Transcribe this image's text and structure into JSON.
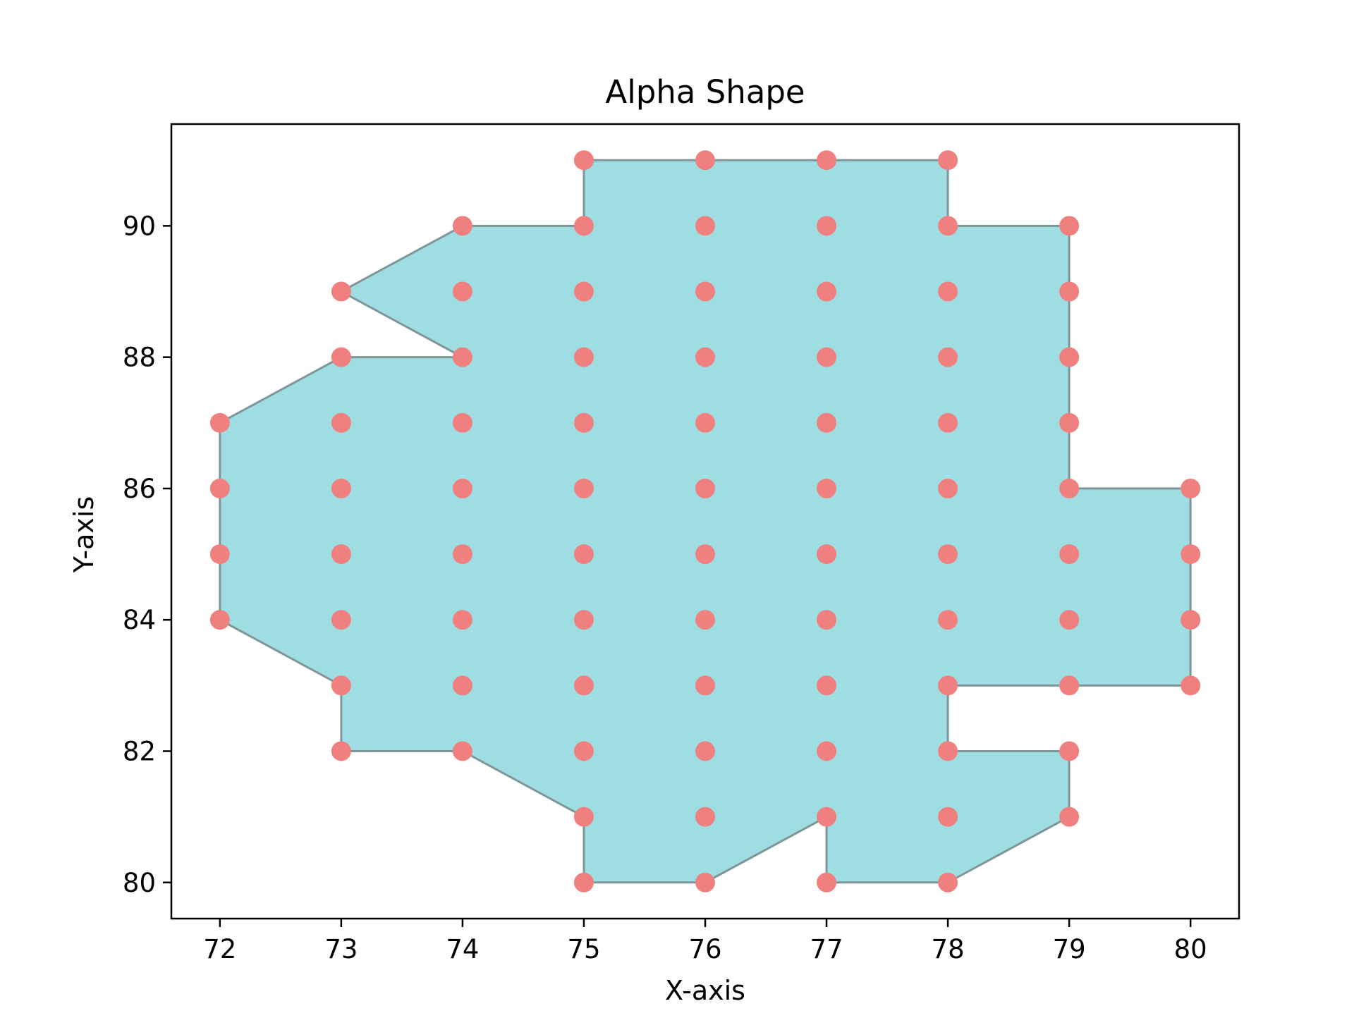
{
  "chart_data": {
    "type": "scatter",
    "title": "Alpha Shape",
    "xlabel": "X-axis",
    "ylabel": "Y-axis",
    "xlim": [
      71.6,
      80.4
    ],
    "ylim": [
      79.45,
      91.55
    ],
    "xticks": [
      72,
      73,
      74,
      75,
      76,
      77,
      78,
      79,
      80
    ],
    "yticks": [
      80,
      82,
      84,
      86,
      88,
      90
    ],
    "grid": false,
    "colors": {
      "points": "#f08080",
      "fill": "#9edee2",
      "edge": "#7f9699"
    },
    "points": [
      [
        72,
        84
      ],
      [
        72,
        85
      ],
      [
        72,
        86
      ],
      [
        72,
        87
      ],
      [
        73,
        82
      ],
      [
        73,
        83
      ],
      [
        73,
        84
      ],
      [
        73,
        85
      ],
      [
        73,
        86
      ],
      [
        73,
        87
      ],
      [
        73,
        88
      ],
      [
        73,
        89
      ],
      [
        74,
        82
      ],
      [
        74,
        83
      ],
      [
        74,
        84
      ],
      [
        74,
        85
      ],
      [
        74,
        86
      ],
      [
        74,
        87
      ],
      [
        74,
        88
      ],
      [
        74,
        89
      ],
      [
        74,
        90
      ],
      [
        75,
        80
      ],
      [
        75,
        81
      ],
      [
        75,
        82
      ],
      [
        75,
        83
      ],
      [
        75,
        84
      ],
      [
        75,
        85
      ],
      [
        75,
        86
      ],
      [
        75,
        87
      ],
      [
        75,
        88
      ],
      [
        75,
        89
      ],
      [
        75,
        90
      ],
      [
        75,
        91
      ],
      [
        76,
        80
      ],
      [
        76,
        81
      ],
      [
        76,
        82
      ],
      [
        76,
        83
      ],
      [
        76,
        84
      ],
      [
        76,
        85
      ],
      [
        76,
        86
      ],
      [
        76,
        87
      ],
      [
        76,
        88
      ],
      [
        76,
        89
      ],
      [
        76,
        90
      ],
      [
        76,
        91
      ],
      [
        77,
        80
      ],
      [
        77,
        81
      ],
      [
        77,
        82
      ],
      [
        77,
        83
      ],
      [
        77,
        84
      ],
      [
        77,
        85
      ],
      [
        77,
        86
      ],
      [
        77,
        87
      ],
      [
        77,
        88
      ],
      [
        77,
        89
      ],
      [
        77,
        90
      ],
      [
        77,
        91
      ],
      [
        78,
        80
      ],
      [
        78,
        81
      ],
      [
        78,
        82
      ],
      [
        78,
        83
      ],
      [
        78,
        84
      ],
      [
        78,
        85
      ],
      [
        78,
        86
      ],
      [
        78,
        87
      ],
      [
        78,
        88
      ],
      [
        78,
        89
      ],
      [
        78,
        90
      ],
      [
        78,
        91
      ],
      [
        79,
        81
      ],
      [
        79,
        82
      ],
      [
        79,
        83
      ],
      [
        79,
        84
      ],
      [
        79,
        85
      ],
      [
        79,
        86
      ],
      [
        79,
        87
      ],
      [
        79,
        88
      ],
      [
        79,
        89
      ],
      [
        79,
        90
      ],
      [
        80,
        83
      ],
      [
        80,
        84
      ],
      [
        80,
        85
      ],
      [
        80,
        86
      ]
    ],
    "shape_boundary": [
      [
        75,
        91
      ],
      [
        78,
        91
      ],
      [
        78,
        90
      ],
      [
        79,
        90
      ],
      [
        79,
        86
      ],
      [
        80,
        86
      ],
      [
        80,
        83
      ],
      [
        78,
        83
      ],
      [
        78,
        82
      ],
      [
        79,
        82
      ],
      [
        79,
        81
      ],
      [
        78,
        80
      ],
      [
        77,
        80
      ],
      [
        77,
        81
      ],
      [
        76,
        80
      ],
      [
        75,
        80
      ],
      [
        75,
        81
      ],
      [
        74,
        82
      ],
      [
        73,
        82
      ],
      [
        73,
        83
      ],
      [
        72,
        84
      ],
      [
        72,
        87
      ],
      [
        73,
        88
      ],
      [
        74,
        88
      ],
      [
        73,
        89
      ],
      [
        74,
        90
      ],
      [
        75,
        90
      ]
    ]
  }
}
